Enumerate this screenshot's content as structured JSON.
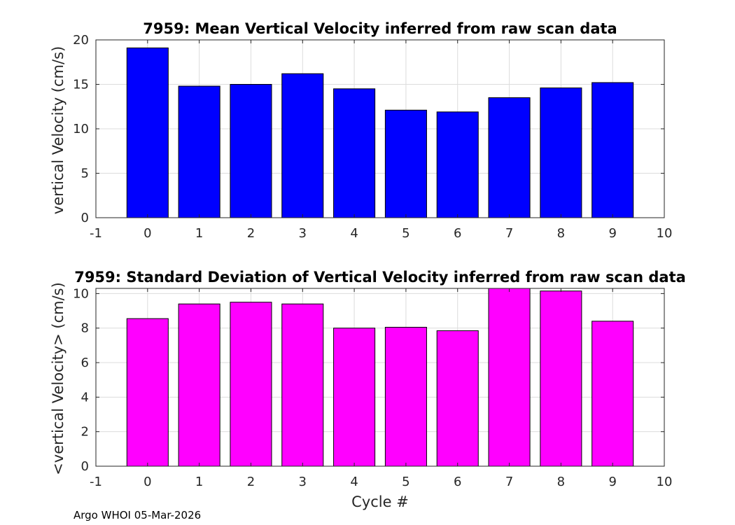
{
  "chart_data": [
    {
      "type": "bar",
      "title": "7959: Mean Vertical Velocity inferred from raw scan data",
      "xlabel": "",
      "ylabel": "vertical Velocity (cm/s)",
      "categories": [
        0,
        1,
        2,
        3,
        4,
        5,
        6,
        7,
        8,
        9
      ],
      "values": [
        19.1,
        14.8,
        15.0,
        16.2,
        14.5,
        12.1,
        11.9,
        13.5,
        14.6,
        15.2
      ],
      "xlim": [
        -1,
        10
      ],
      "ylim": [
        0,
        20
      ],
      "xticks": [
        "-1",
        "0",
        "1",
        "2",
        "3",
        "4",
        "5",
        "6",
        "7",
        "8",
        "9",
        "10"
      ],
      "yticks": [
        "0",
        "5",
        "10",
        "15",
        "20"
      ],
      "color": "#0000ff",
      "grid": true
    },
    {
      "type": "bar",
      "title": "7959: Standard Deviation of Vertical Velocity inferred from raw scan data",
      "xlabel": "Cycle #",
      "ylabel": "<vertical Velocity> (cm/s)",
      "categories": [
        0,
        1,
        2,
        3,
        4,
        5,
        6,
        7,
        8,
        9
      ],
      "values": [
        8.55,
        9.4,
        9.5,
        9.4,
        8.0,
        8.05,
        7.85,
        10.3,
        10.15,
        8.4
      ],
      "xlim": [
        -1,
        10
      ],
      "ylim": [
        0,
        10.3
      ],
      "xticks": [
        "-1",
        "0",
        "1",
        "2",
        "3",
        "4",
        "5",
        "6",
        "7",
        "8",
        "9",
        "10"
      ],
      "yticks": [
        "0",
        "2",
        "4",
        "6",
        "8",
        "10"
      ],
      "color": "#ff00ff",
      "grid": true
    }
  ],
  "footer": "Argo WHOI 05-Mar-2026"
}
